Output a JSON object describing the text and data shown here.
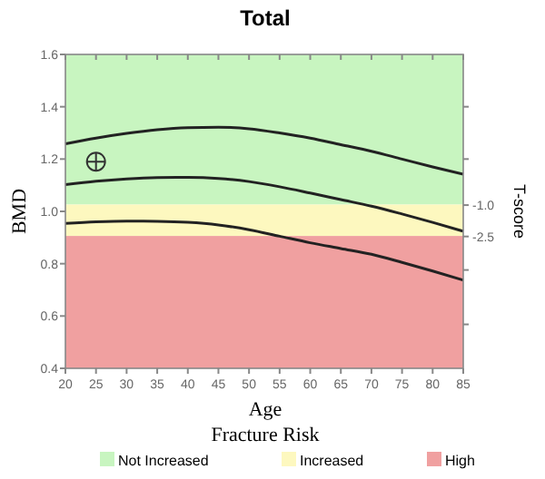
{
  "chart_data": {
    "type": "line",
    "title": "Total",
    "xlabel": "Age",
    "ylabel": "BMD",
    "y2label": "T-score",
    "legend_title": "Fracture Risk",
    "xlim": [
      20,
      85
    ],
    "xticks": [
      20,
      25,
      30,
      35,
      40,
      45,
      50,
      55,
      60,
      65,
      70,
      75,
      80,
      85
    ],
    "ylim": [
      0.4,
      1.6
    ],
    "yticks": [
      0.4,
      0.6,
      0.8,
      {
        "value": 1,
        "label": "1.0"
      },
      1.2,
      1.4,
      1.6
    ],
    "y2lim": [
      -8.8,
      6.2
    ],
    "y2ticks": [
      {
        "value": 3.7,
        "label": null
      },
      {
        "value": 1.2,
        "label": null
      },
      {
        "value": -1,
        "label": "-1.0"
      },
      {
        "value": -2.5,
        "label": "-2.5"
      },
      {
        "value": -4.1,
        "label": null
      },
      {
        "value": -6.7,
        "label": null
      }
    ],
    "x": [
      20,
      25,
      30,
      35,
      40,
      45,
      50,
      55,
      60,
      65,
      70,
      75,
      80,
      85
    ],
    "series": [
      {
        "color": "#222222",
        "values": [
          1.258,
          1.28,
          1.298,
          1.312,
          1.32,
          1.322,
          1.316,
          1.3,
          1.28,
          1.255,
          1.23,
          1.2,
          1.17,
          1.142
        ]
      },
      {
        "color": "#222222",
        "values": [
          1.102,
          1.115,
          1.124,
          1.129,
          1.13,
          1.126,
          1.114,
          1.094,
          1.07,
          1.045,
          1.02,
          0.99,
          0.958,
          0.924
        ]
      },
      {
        "color": "#222222",
        "values": [
          0.954,
          0.96,
          0.963,
          0.962,
          0.958,
          0.948,
          0.93,
          0.905,
          0.88,
          0.858,
          0.836,
          0.805,
          0.772,
          0.737
        ]
      },
      {
        "type": "scatter",
        "color": "#333333",
        "x": [
          25
        ],
        "values": [
          1.19
        ],
        "marker": "circle"
      }
    ],
    "bands": [
      {
        "axis": "y",
        "from": 1.026,
        "to": 1.6,
        "label": "Not Increased",
        "color": "#c8f5c0"
      },
      {
        "axis": "y",
        "from": 0.906,
        "to": 1.026,
        "label": "Increased",
        "color": "#fdf8bf"
      },
      {
        "axis": "y",
        "from": 0.4,
        "to": 0.906,
        "label": "High",
        "color": "#f0a0a0"
      }
    ],
    "legend": "bottom",
    "grid": false
  }
}
